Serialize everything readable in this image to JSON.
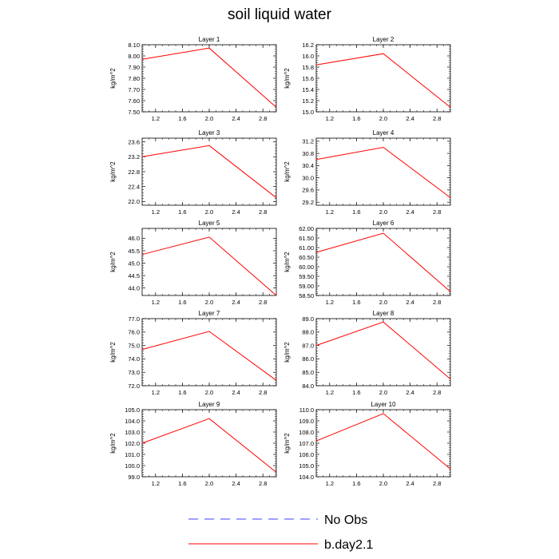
{
  "title": "soil liquid water",
  "colors": {
    "model": "#ff0000",
    "obs": "#4040ff"
  },
  "legend": [
    {
      "label": "No Obs",
      "style": "dashed",
      "color": "#4040ff"
    },
    {
      "label": "b.day2.1",
      "style": "solid",
      "color": "#ff0000"
    }
  ],
  "chart_data": [
    {
      "type": "line",
      "title": "Layer 1",
      "ylabel": "kg/m^2",
      "xlim": [
        1.0,
        3.0
      ],
      "ylim": [
        7.5,
        8.1
      ],
      "xticks": [
        "1.2",
        "1.6",
        "2.0",
        "2.4",
        "2.8"
      ],
      "xtick_vals": [
        1.2,
        1.6,
        2.0,
        2.4,
        2.8
      ],
      "yticks": [
        "7.50",
        "7.60",
        "7.70",
        "7.80",
        "7.90",
        "8.00",
        "8.10"
      ],
      "ytick_vals": [
        7.5,
        7.6,
        7.7,
        7.8,
        7.9,
        8.0,
        8.1
      ],
      "series": [
        {
          "name": "b.day2.1",
          "x": [
            1.0,
            2.0,
            3.0
          ],
          "y": [
            7.97,
            8.07,
            7.54
          ]
        }
      ]
    },
    {
      "type": "line",
      "title": "Layer 2",
      "ylabel": "kg/m^2",
      "xlim": [
        1.0,
        3.0
      ],
      "ylim": [
        15.0,
        16.2
      ],
      "xticks": [
        "1.2",
        "1.6",
        "2.0",
        "2.4",
        "2.8"
      ],
      "xtick_vals": [
        1.2,
        1.6,
        2.0,
        2.4,
        2.8
      ],
      "yticks": [
        "15.0",
        "15.2",
        "15.4",
        "15.6",
        "15.8",
        "16.0",
        "16.2"
      ],
      "ytick_vals": [
        15.0,
        15.2,
        15.4,
        15.6,
        15.8,
        16.0,
        16.2
      ],
      "series": [
        {
          "name": "b.day2.1",
          "x": [
            1.0,
            2.0,
            3.0
          ],
          "y": [
            15.84,
            16.04,
            15.08
          ]
        }
      ]
    },
    {
      "type": "line",
      "title": "Layer 3",
      "ylabel": "kg/m^2",
      "xlim": [
        1.0,
        3.0
      ],
      "ylim": [
        21.9,
        23.7
      ],
      "xticks": [
        "1.2",
        "1.6",
        "2.0",
        "2.4",
        "2.8"
      ],
      "xtick_vals": [
        1.2,
        1.6,
        2.0,
        2.4,
        2.8
      ],
      "yticks": [
        "22.0",
        "22.4",
        "22.8",
        "23.2",
        "23.6"
      ],
      "ytick_vals": [
        22.0,
        22.4,
        22.8,
        23.2,
        23.6
      ],
      "series": [
        {
          "name": "b.day2.1",
          "x": [
            1.0,
            2.0,
            3.0
          ],
          "y": [
            23.2,
            23.5,
            22.1
          ]
        }
      ]
    },
    {
      "type": "line",
      "title": "Layer 4",
      "ylabel": "kg/m^2",
      "xlim": [
        1.0,
        3.0
      ],
      "ylim": [
        29.1,
        31.3
      ],
      "xticks": [
        "1.2",
        "1.6",
        "2.0",
        "2.4",
        "2.8"
      ],
      "xtick_vals": [
        1.2,
        1.6,
        2.0,
        2.4,
        2.8
      ],
      "yticks": [
        "29.2",
        "29.6",
        "30.0",
        "30.4",
        "30.8",
        "31.2"
      ],
      "ytick_vals": [
        29.2,
        29.6,
        30.0,
        30.4,
        30.8,
        31.2
      ],
      "series": [
        {
          "name": "b.day2.1",
          "x": [
            1.0,
            2.0,
            3.0
          ],
          "y": [
            30.6,
            31.0,
            29.35
          ]
        }
      ]
    },
    {
      "type": "line",
      "title": "Layer 5",
      "ylabel": "kg/m^2",
      "xlim": [
        1.0,
        3.0
      ],
      "ylim": [
        43.7,
        46.4
      ],
      "xticks": [
        "1.2",
        "1.6",
        "2.0",
        "2.4",
        "2.8"
      ],
      "xtick_vals": [
        1.2,
        1.6,
        2.0,
        2.4,
        2.8
      ],
      "yticks": [
        "44.0",
        "44.5",
        "45.0",
        "45.5",
        "46.0"
      ],
      "ytick_vals": [
        44.0,
        44.5,
        45.0,
        45.5,
        46.0
      ],
      "series": [
        {
          "name": "b.day2.1",
          "x": [
            1.0,
            2.0,
            3.0
          ],
          "y": [
            45.35,
            46.05,
            43.7
          ]
        }
      ]
    },
    {
      "type": "line",
      "title": "Layer 6",
      "ylabel": "kg/m^2",
      "xlim": [
        1.0,
        3.0
      ],
      "ylim": [
        58.5,
        62.0
      ],
      "xticks": [
        "1.2",
        "1.6",
        "2.0",
        "2.4",
        "2.8"
      ],
      "xtick_vals": [
        1.2,
        1.6,
        2.0,
        2.4,
        2.8
      ],
      "yticks": [
        "58.50",
        "59.00",
        "59.50",
        "60.00",
        "60.50",
        "61.00",
        "61.50",
        "62.00"
      ],
      "ytick_vals": [
        58.5,
        59.0,
        59.5,
        60.0,
        60.5,
        61.0,
        61.5,
        62.0
      ],
      "series": [
        {
          "name": "b.day2.1",
          "x": [
            1.0,
            2.0,
            3.0
          ],
          "y": [
            60.75,
            61.75,
            58.7
          ]
        }
      ]
    },
    {
      "type": "line",
      "title": "Layer 7",
      "ylabel": "kg/m^2",
      "xlim": [
        1.0,
        3.0
      ],
      "ylim": [
        72.0,
        77.0
      ],
      "xticks": [
        "1.2",
        "1.6",
        "2.0",
        "2.4",
        "2.8"
      ],
      "xtick_vals": [
        1.2,
        1.6,
        2.0,
        2.4,
        2.8
      ],
      "yticks": [
        "72.0",
        "73.0",
        "74.0",
        "75.0",
        "76.0",
        "77.0"
      ],
      "ytick_vals": [
        72.0,
        73.0,
        74.0,
        75.0,
        76.0,
        77.0
      ],
      "series": [
        {
          "name": "b.day2.1",
          "x": [
            1.0,
            2.0,
            3.0
          ],
          "y": [
            74.7,
            76.05,
            72.4
          ]
        }
      ]
    },
    {
      "type": "line",
      "title": "Layer 8",
      "ylabel": "kg/m^2",
      "xlim": [
        1.0,
        3.0
      ],
      "ylim": [
        84.0,
        89.0
      ],
      "xticks": [
        "1.2",
        "1.6",
        "2.0",
        "2.4",
        "2.8"
      ],
      "xtick_vals": [
        1.2,
        1.6,
        2.0,
        2.4,
        2.8
      ],
      "yticks": [
        "84.0",
        "85.0",
        "86.0",
        "87.0",
        "88.0",
        "89.0"
      ],
      "ytick_vals": [
        84.0,
        85.0,
        86.0,
        87.0,
        88.0,
        89.0
      ],
      "series": [
        {
          "name": "b.day2.1",
          "x": [
            1.0,
            2.0,
            3.0
          ],
          "y": [
            87.0,
            88.75,
            84.5
          ]
        }
      ]
    },
    {
      "type": "line",
      "title": "Layer 9",
      "ylabel": "kg/m^2",
      "xlim": [
        1.0,
        3.0
      ],
      "ylim": [
        99.0,
        105.0
      ],
      "xticks": [
        "1.2",
        "1.6",
        "2.0",
        "2.4",
        "2.8"
      ],
      "xtick_vals": [
        1.2,
        1.6,
        2.0,
        2.4,
        2.8
      ],
      "yticks": [
        "99.0",
        "100.0",
        "101.0",
        "102.0",
        "103.0",
        "104.0",
        "105.0"
      ],
      "ytick_vals": [
        99.0,
        100.0,
        101.0,
        102.0,
        103.0,
        104.0,
        105.0
      ],
      "series": [
        {
          "name": "b.day2.1",
          "x": [
            1.0,
            2.0,
            3.0
          ],
          "y": [
            102.0,
            104.2,
            99.4
          ]
        }
      ]
    },
    {
      "type": "line",
      "title": "Layer 10",
      "ylabel": "kg/m^2",
      "xlim": [
        1.0,
        3.0
      ],
      "ylim": [
        104.0,
        110.0
      ],
      "xticks": [
        "1.2",
        "1.6",
        "2.0",
        "2.4",
        "2.8"
      ],
      "xtick_vals": [
        1.2,
        1.6,
        2.0,
        2.4,
        2.8
      ],
      "yticks": [
        "104.0",
        "105.0",
        "106.0",
        "107.0",
        "108.0",
        "109.0",
        "110.0"
      ],
      "ytick_vals": [
        104.0,
        105.0,
        106.0,
        107.0,
        108.0,
        109.0,
        110.0
      ],
      "series": [
        {
          "name": "b.day2.1",
          "x": [
            1.0,
            2.0,
            3.0
          ],
          "y": [
            107.2,
            109.65,
            104.7
          ]
        }
      ]
    }
  ]
}
